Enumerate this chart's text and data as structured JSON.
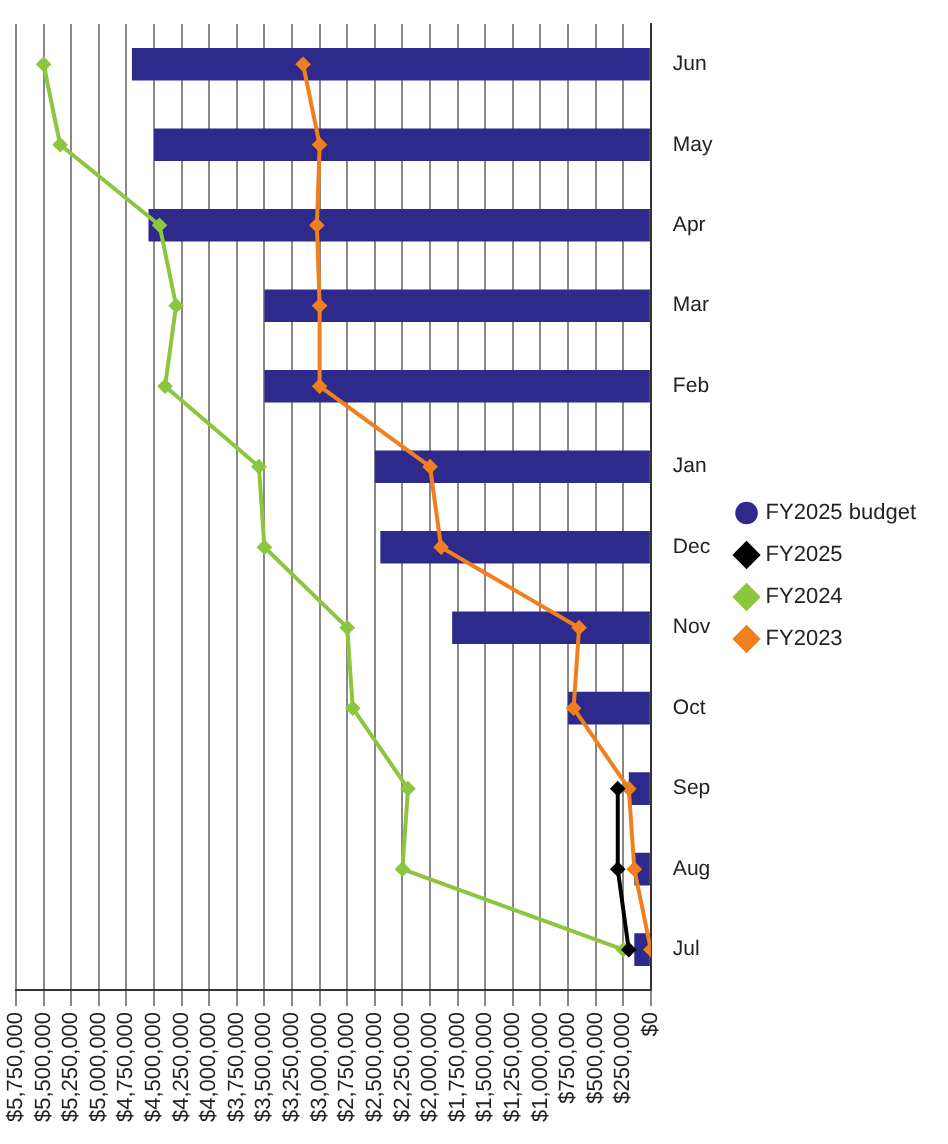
{
  "chart_data": {
    "type": "bar",
    "orientation": "horizontal",
    "categories": [
      "Jun",
      "May",
      "Apr",
      "Mar",
      "Feb",
      "Jan",
      "Dec",
      "Nov",
      "Oct",
      "Sep",
      "Aug",
      "Jul"
    ],
    "series": [
      {
        "name": "FY2025 budget",
        "color": "#2e2a8c",
        "values": [
          4700000,
          4500000,
          4550000,
          3500000,
          3500000,
          2500000,
          2450000,
          1800000,
          750000,
          200000,
          150000,
          150000
        ]
      },
      {
        "name": "FY2025",
        "type": "line",
        "color": "#000000",
        "values": [
          null,
          null,
          null,
          null,
          null,
          null,
          null,
          null,
          null,
          300000,
          300000,
          200000
        ]
      },
      {
        "name": "FY2024",
        "type": "line",
        "color": "#8cc63f",
        "values": [
          5500000,
          5350000,
          4450000,
          4300000,
          4400000,
          3550000,
          3500000,
          2750000,
          2700000,
          2200000,
          2250000,
          250000
        ]
      },
      {
        "name": "FY2023",
        "type": "line",
        "color": "#f07f1e",
        "values": [
          3150000,
          3000000,
          3025000,
          3000000,
          3000000,
          2000000,
          1900000,
          650000,
          700000,
          200000,
          150000,
          0
        ]
      }
    ],
    "xlim": [
      5750000,
      0
    ],
    "xticks": [
      {
        "value": 5750000,
        "label": "$5,750,000"
      },
      {
        "value": 5500000,
        "label": "$5,500,000"
      },
      {
        "value": 5250000,
        "label": "$5,250,000"
      },
      {
        "value": 5000000,
        "label": "$5,000,000"
      },
      {
        "value": 4750000,
        "label": "$4,750,000"
      },
      {
        "value": 4500000,
        "label": "$4,500,000"
      },
      {
        "value": 4250000,
        "label": "$4,250,000"
      },
      {
        "value": 4000000,
        "label": "$4,000,000"
      },
      {
        "value": 3750000,
        "label": "$3,750,000"
      },
      {
        "value": 3500000,
        "label": "$3,500,000"
      },
      {
        "value": 3250000,
        "label": "$3,250,000"
      },
      {
        "value": 3000000,
        "label": "$3,000,000"
      },
      {
        "value": 2750000,
        "label": "$2,750,000"
      },
      {
        "value": 2500000,
        "label": "$2,500,000"
      },
      {
        "value": 2250000,
        "label": "$2,250,000"
      },
      {
        "value": 2000000,
        "label": "$2,000,000"
      },
      {
        "value": 1750000,
        "label": "$1,750,000"
      },
      {
        "value": 1500000,
        "label": "$1,500,000"
      },
      {
        "value": 1250000,
        "label": "$1,250,000"
      },
      {
        "value": 1000000,
        "label": "$1,000,000"
      },
      {
        "value": 750000,
        "label": "$750,000"
      },
      {
        "value": 500000,
        "label": "$500,000"
      },
      {
        "value": 250000,
        "label": "$250,000"
      },
      {
        "value": 0,
        "label": "$0"
      }
    ],
    "grid": "x",
    "legend": "right",
    "marker": "diamond",
    "line_style": "solid"
  }
}
